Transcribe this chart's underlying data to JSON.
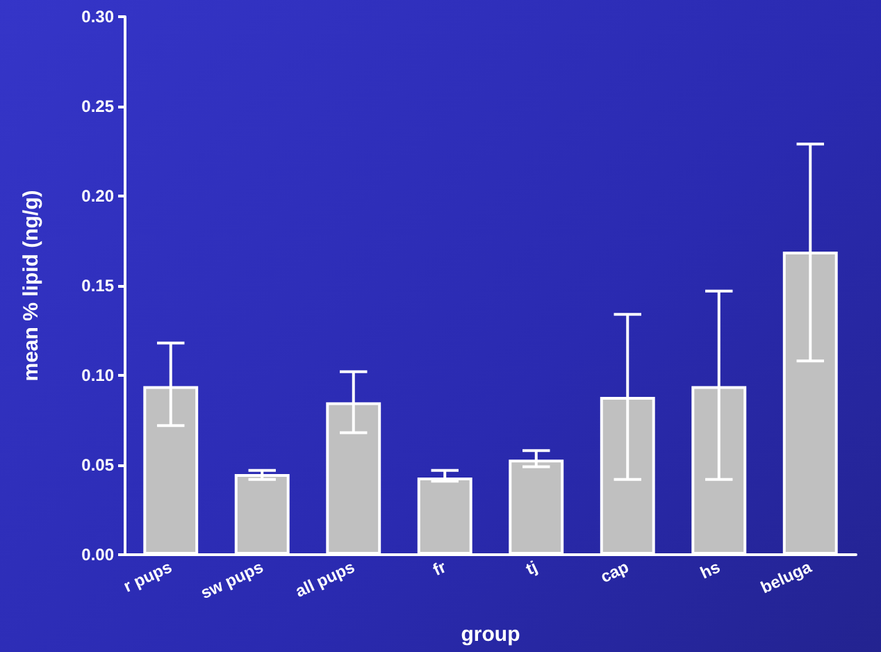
{
  "chart_data": {
    "type": "bar",
    "xlabel": "group",
    "ylabel": "mean % lipid (ng/g)",
    "categories": [
      "r pups",
      "sw pups",
      "all pups",
      "fr",
      "tj",
      "cap",
      "hs",
      "beluga"
    ],
    "values": [
      0.094,
      0.045,
      0.085,
      0.043,
      0.053,
      0.088,
      0.094,
      0.169
    ],
    "errors": [
      [
        0.072,
        0.118
      ],
      [
        0.042,
        0.047
      ],
      [
        0.068,
        0.102
      ],
      [
        0.041,
        0.047
      ],
      [
        0.049,
        0.058
      ],
      [
        0.042,
        0.134
      ],
      [
        0.042,
        0.147
      ],
      [
        0.108,
        0.229
      ]
    ],
    "color": "#c0c0c0",
    "ylim": [
      0,
      0.3
    ],
    "yticks": [
      {
        "value": 0,
        "label": "0.00"
      },
      {
        "value": 0.05,
        "label": "0.05"
      },
      {
        "value": 0.1,
        "label": "0.10"
      },
      {
        "value": 0.15,
        "label": "0.15"
      },
      {
        "value": 0.2,
        "label": "0.20"
      },
      {
        "value": 0.25,
        "label": "0.25"
      },
      {
        "value": 0.3,
        "label": "0.30"
      }
    ],
    "grid": false
  }
}
